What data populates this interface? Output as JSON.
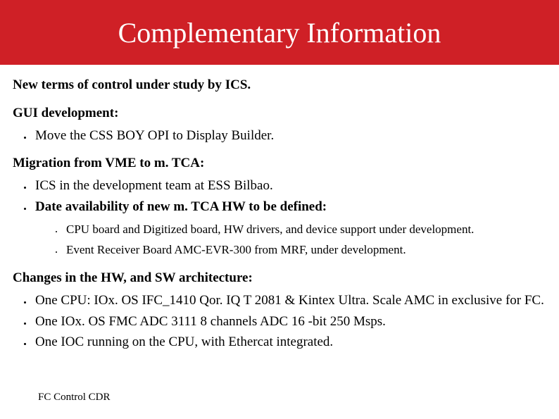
{
  "colors": {
    "title_bar_bg": "#cf2026",
    "title_text": "#ffffff",
    "body_text": "#000000",
    "background": "#ffffff"
  },
  "fonts": {
    "family": "Times New Roman",
    "title_size_pt": 30,
    "section_size_pt": 14,
    "body_size_pt": 14,
    "sub_size_pt": 13,
    "footer_size_pt": 11
  },
  "title": "Complementary Information",
  "intro": "New terms of control under study by ICS.",
  "sections": [
    {
      "heading": "GUI development:",
      "items": [
        {
          "text": "Move the CSS BOY OPI to Display Builder.",
          "bold": false
        }
      ]
    },
    {
      "heading": "Migration from VME to m. TCA:",
      "items": [
        {
          "text": "ICS in the development team at ESS Bilbao.",
          "bold": false
        },
        {
          "text": "Date availability of new m. TCA HW to be defined:",
          "bold": true,
          "subitems": [
            "CPU board and Digitized board, HW drivers, and device support under development.",
            "Event Receiver Board AMC-EVR-300 from MRF, under development."
          ]
        }
      ]
    },
    {
      "heading": "Changes in the HW, and SW architecture:",
      "items": [
        {
          "text": "One CPU: IOx. OS IFC_1410 Qor. IQ T 2081 & Kintex Ultra. Scale AMC in exclusive for FC.",
          "bold": false
        },
        {
          "text": "One IOx. OS FMC ADC 3111 8 channels ADC 16 -bit 250 Msps.",
          "bold": false
        },
        {
          "text": "One IOC running on the CPU, with Ethercat integrated.",
          "bold": false
        }
      ]
    }
  ],
  "footer": "FC Control CDR"
}
